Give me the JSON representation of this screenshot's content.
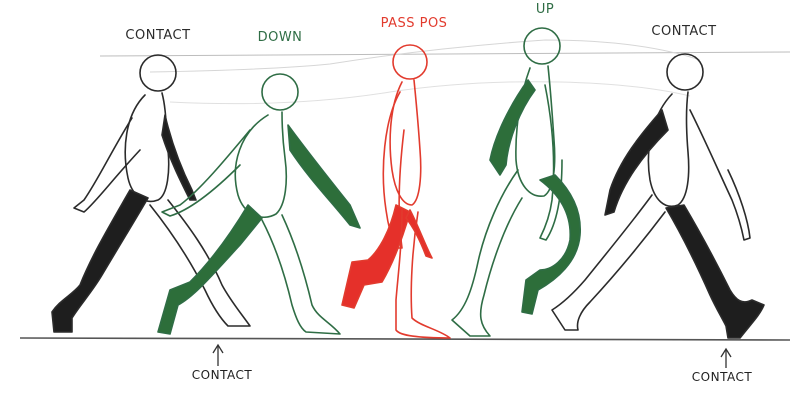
{
  "labels": {
    "contact_start": "CONTACT",
    "down": "DOWN",
    "passing": "PASS POS",
    "up": "UP",
    "contact_end": "CONTACT"
  },
  "ground_notes": {
    "left": "CONTACT",
    "right": "CONTACT"
  },
  "colors": {
    "outline": "#2b2b2b",
    "shade_black": "#1e1e1e",
    "green": "#2f6d45",
    "green_fill": "#2d6e3a",
    "red": "#e23b2e",
    "red_fill": "#e5302a",
    "guide": "#bdbdbd"
  }
}
